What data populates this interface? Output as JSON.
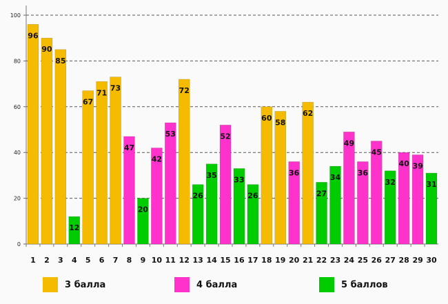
{
  "chart_data": {
    "type": "bar",
    "title": "",
    "xlabel": "",
    "ylabel": "",
    "ylim": [
      0,
      100
    ],
    "y_ticks": [
      "0",
      "20",
      "40",
      "60",
      "80",
      "100"
    ],
    "grid": true,
    "legend_position": "bottom",
    "categories": [
      "1",
      "2",
      "3",
      "4",
      "5",
      "6",
      "7",
      "8",
      "9",
      "10",
      "11",
      "12",
      "13",
      "14",
      "15",
      "16",
      "17",
      "18",
      "19",
      "20",
      "21",
      "22",
      "23",
      "24",
      "25",
      "26",
      "27",
      "28",
      "29",
      "30"
    ],
    "values": [
      96,
      90,
      85,
      12,
      67,
      71,
      73,
      47,
      20,
      42,
      53,
      72,
      26,
      35,
      52,
      33,
      26,
      60,
      58,
      36,
      62,
      27,
      34,
      49,
      36,
      45,
      32,
      40,
      39,
      31
    ],
    "value_labels": [
      "96",
      "90",
      "85",
      "12",
      "67",
      "71",
      "73",
      "47",
      "20",
      "42",
      "53",
      "72",
      "26",
      "35",
      "52",
      "33",
      "26",
      "60",
      "58",
      "36",
      "62",
      "27",
      "34",
      "49",
      "36",
      "45",
      "32",
      "40",
      "39",
      "31"
    ],
    "groups": [
      "3",
      "3",
      "3",
      "5",
      "3",
      "3",
      "3",
      "4",
      "5",
      "4",
      "4",
      "3",
      "5",
      "5",
      "4",
      "5",
      "5",
      "3",
      "3",
      "4",
      "3",
      "5",
      "5",
      "4",
      "4",
      "4",
      "5",
      "4",
      "4",
      "5"
    ],
    "colors": {
      "3": "#f5bb00",
      "4": "#ff33cc",
      "5": "#00cc00"
    },
    "legend": [
      {
        "group": "3",
        "label": "3 балла",
        "color": "#f5bb00"
      },
      {
        "group": "4",
        "label": "4 балла",
        "color": "#ff33cc"
      },
      {
        "group": "5",
        "label": "5 баллов",
        "color": "#00cc00"
      }
    ]
  }
}
